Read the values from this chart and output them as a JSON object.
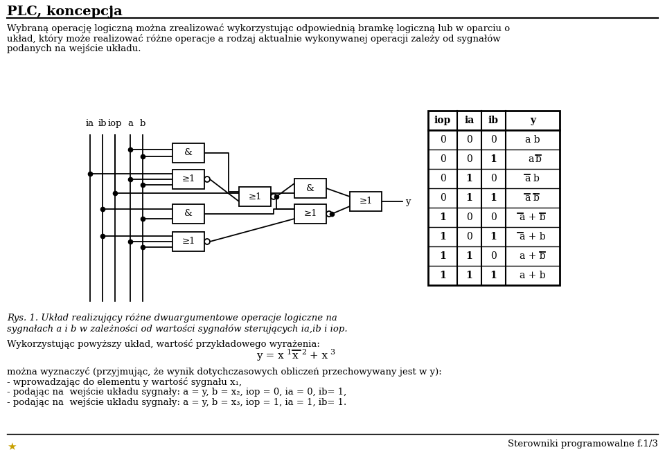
{
  "title": "PLC, koncepcja",
  "body_text_lines": [
    "Wybraną operację logiczną można zrealizować wykorzystując odpowiednią bramkę logiczną lub w oparciu o",
    "układ, który może realizować różne operacje a rodzaj aktualnie wykonywanej operacji zależy od sygnałów",
    "podanych na wejście układu."
  ],
  "caption_lines": [
    "Rys. 1. Układ realizujący różne dwuargumentowe operacje logiczne na",
    "sygnałach a i b w zależności od wartości sygnałów sterujących ia,ib i iop."
  ],
  "formula_intro": "Wykorzystując powyższy układ, wartość przykładowego wyrażenia:",
  "body2_lines": [
    "można wyznaczyć (przyjmując, że wynik dotychczasowych obliczeń przechowywany jest w y):",
    "- wprowadzając do elementu y wartość sygnału x₁,",
    "- podając na  wejście układu sygnały: a = y, b = x₂, iop = 0, ia = 0, ib= 1,",
    "- podając na  wejście układu sygnały: a = y, b = x₃, iop = 1, ia = 1, ib= 1."
  ],
  "footer_text": "Sterowniki programowalne f.1/3",
  "table_headers": [
    "iop",
    "ia",
    "ib",
    "y"
  ],
  "bg_color": "#ffffff",
  "text_color": "#000000"
}
